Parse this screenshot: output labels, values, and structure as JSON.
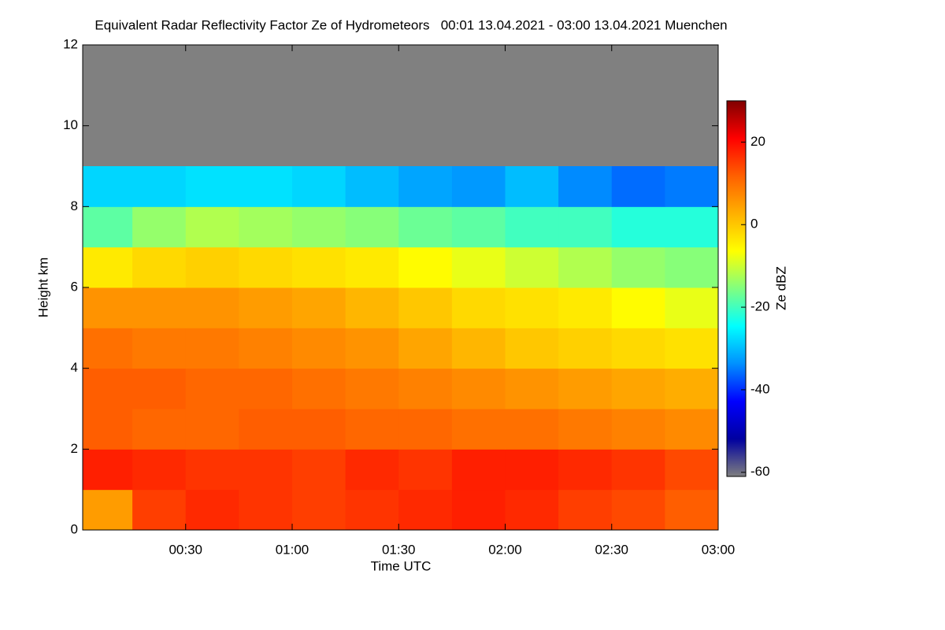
{
  "chart_data": {
    "type": "heatmap",
    "title": "Equivalent Radar Reflectivity Factor Ze of Hydrometeors   00:01 13.04.2021 - 03:00 13.04.2021 Muenchen",
    "x_label": "Time UTC",
    "y_label": "Height km",
    "colorbar_label": "Ze dBZ",
    "x_edges": [
      1,
      15,
      30,
      45,
      60,
      75,
      90,
      105,
      120,
      135,
      150,
      165,
      180
    ],
    "y_edges": [
      0,
      1,
      2,
      3,
      4,
      5,
      6,
      7,
      8,
      9,
      10,
      11,
      12
    ],
    "values": [
      [
        5,
        15,
        17,
        16,
        15,
        16,
        17,
        18,
        17,
        15,
        14,
        12
      ],
      [
        18,
        17,
        16,
        16,
        15,
        17,
        16,
        18,
        18,
        17,
        16,
        14
      ],
      [
        12,
        11,
        11,
        12,
        12,
        11,
        11,
        10,
        10,
        9,
        8,
        7
      ],
      [
        12,
        12,
        11,
        11,
        10,
        9,
        8,
        7,
        6,
        5,
        4,
        3
      ],
      [
        10,
        9,
        9,
        8,
        7,
        6,
        4,
        2,
        0,
        -1,
        -2,
        -3
      ],
      [
        6,
        6,
        6,
        5,
        4,
        2,
        0,
        -2,
        -3,
        -4,
        -6,
        -8
      ],
      [
        -4,
        -2,
        -1,
        -2,
        -3,
        -4,
        -6,
        -8,
        -10,
        -12,
        -14,
        -15
      ],
      [
        -18,
        -14,
        -12,
        -13,
        -14,
        -15,
        -17,
        -18,
        -20,
        -20,
        -22,
        -22
      ],
      [
        -28,
        -28,
        -27,
        -27,
        -28,
        -30,
        -32,
        -33,
        -30,
        -34,
        -36,
        -35
      ],
      [
        null,
        null,
        null,
        null,
        null,
        null,
        null,
        null,
        null,
        null,
        null,
        null
      ],
      [
        null,
        null,
        null,
        null,
        null,
        null,
        null,
        null,
        null,
        null,
        null,
        null
      ],
      [
        null,
        null,
        null,
        null,
        null,
        null,
        null,
        null,
        null,
        null,
        null,
        null
      ]
    ],
    "xlim": [
      1,
      180
    ],
    "ylim": [
      0,
      12
    ],
    "xticks": [
      {
        "value": 30,
        "label": "00:30"
      },
      {
        "value": 60,
        "label": "01:00"
      },
      {
        "value": 90,
        "label": "01:30"
      },
      {
        "value": 120,
        "label": "02:00"
      },
      {
        "value": 150,
        "label": "02:30"
      },
      {
        "value": 180,
        "label": "03:00"
      }
    ],
    "yticks": [
      0,
      2,
      4,
      6,
      8,
      10,
      12
    ],
    "clim": [
      -61,
      30
    ],
    "cticks": [
      -60,
      -40,
      -20,
      0,
      20
    ],
    "colormap": [
      "#7f7f7f",
      "#0000a0",
      "#0000ff",
      "#0090ff",
      "#00ffff",
      "#80ff80",
      "#ffff00",
      "#ffb000",
      "#ff6000",
      "#ff0000",
      "#800000"
    ],
    "nodata_color": "#808080"
  }
}
